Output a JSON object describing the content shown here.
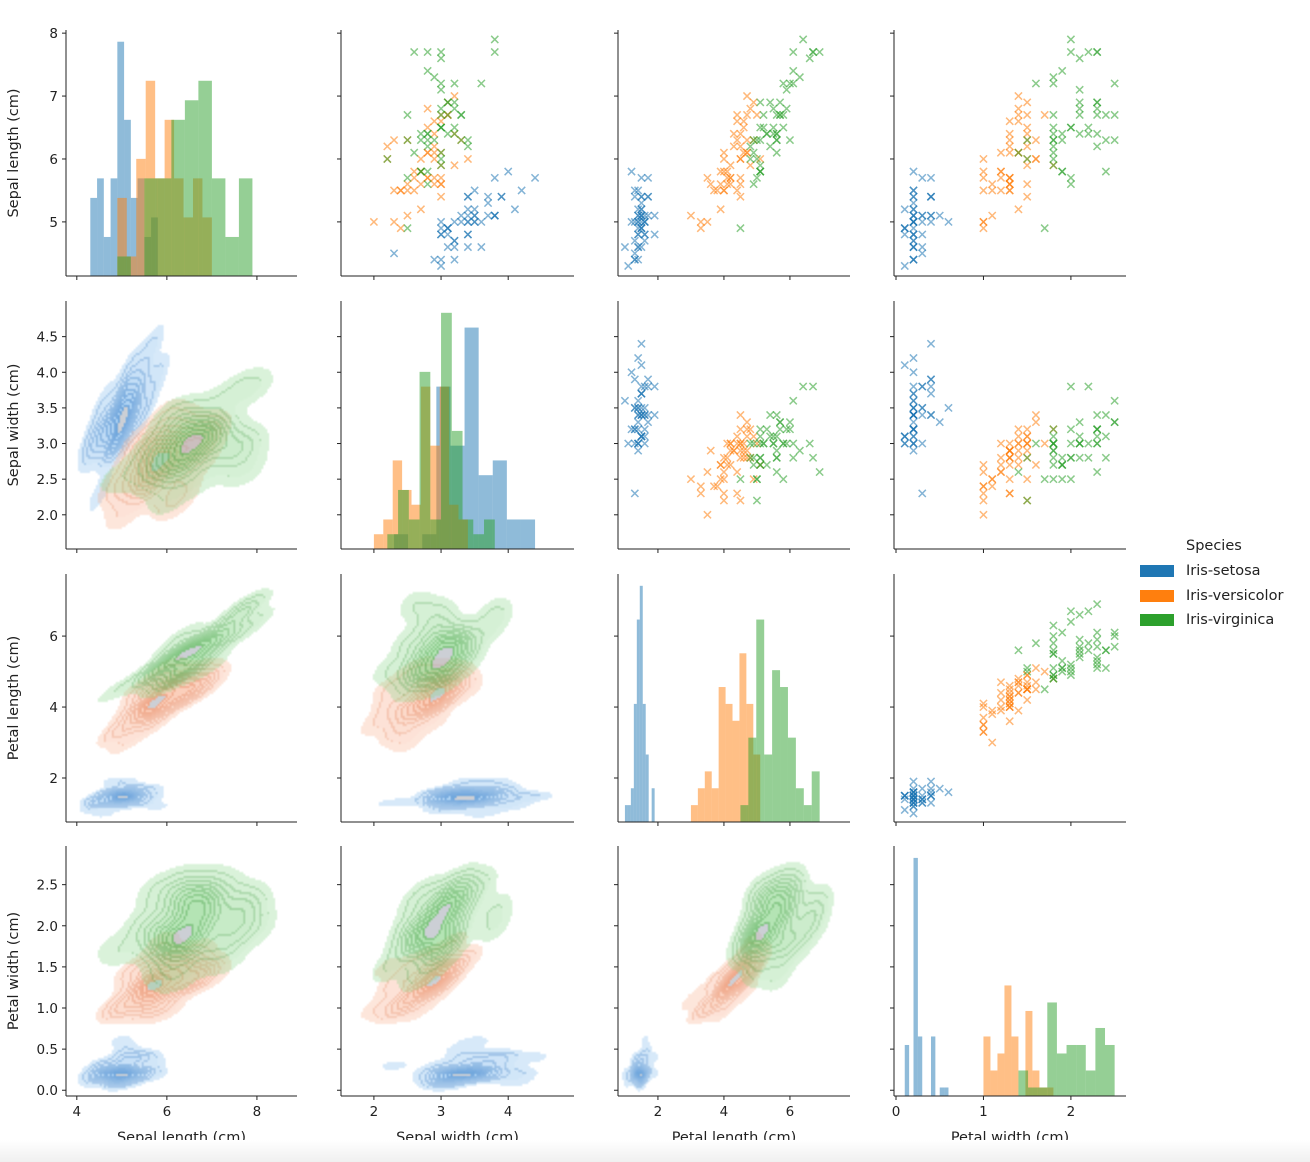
{
  "chart_data": {
    "type": "pairplot",
    "diagonal": "histogram",
    "upper": "scatter",
    "lower": "kde",
    "marker": "x",
    "grid": false,
    "legend": {
      "title": "Species",
      "placement": "right"
    },
    "variables": [
      {
        "label": "Sepal length (cm)",
        "xlim": [
          3.76,
          8.89
        ],
        "ylim": [
          4.14,
          8.05
        ],
        "xticks": [
          "4",
          "6",
          "8"
        ],
        "yticks": [
          "5",
          "6",
          "7",
          "8"
        ]
      },
      {
        "label": "Sepal width (cm)",
        "xlim": [
          1.51,
          4.98
        ],
        "ylim": [
          1.52,
          5.0
        ],
        "xticks": [
          "2",
          "3",
          "4"
        ],
        "yticks": [
          "2.0",
          "2.5",
          "3.0",
          "3.5",
          "4.0",
          "4.5"
        ]
      },
      {
        "label": "Petal length (cm)",
        "xlim": [
          0.79,
          7.82
        ],
        "ylim": [
          0.76,
          7.75
        ],
        "xticks": [
          "2",
          "4",
          "6"
        ],
        "yticks": [
          "2",
          "4",
          "6"
        ]
      },
      {
        "label": "Petal width (cm)",
        "xlim": [
          -0.023,
          2.63
        ],
        "ylim": [
          -0.07,
          2.97
        ],
        "xticks": [
          "0",
          "1",
          "2"
        ],
        "yticks": [
          "0.0",
          "0.5",
          "1.0",
          "1.5",
          "2.0",
          "2.5"
        ]
      }
    ],
    "series": [
      {
        "name": "Iris-setosa",
        "color": "#1f77b4",
        "points": [
          [
            5.1,
            3.5,
            1.4,
            0.2
          ],
          [
            4.9,
            3.0,
            1.4,
            0.2
          ],
          [
            4.7,
            3.2,
            1.3,
            0.2
          ],
          [
            4.6,
            3.1,
            1.5,
            0.2
          ],
          [
            5.0,
            3.6,
            1.4,
            0.2
          ],
          [
            5.4,
            3.9,
            1.7,
            0.4
          ],
          [
            4.6,
            3.4,
            1.4,
            0.3
          ],
          [
            5.0,
            3.4,
            1.5,
            0.2
          ],
          [
            4.4,
            2.9,
            1.4,
            0.2
          ],
          [
            4.9,
            3.1,
            1.5,
            0.1
          ],
          [
            5.4,
            3.7,
            1.5,
            0.2
          ],
          [
            4.8,
            3.4,
            1.6,
            0.2
          ],
          [
            4.8,
            3.0,
            1.4,
            0.1
          ],
          [
            4.3,
            3.0,
            1.1,
            0.1
          ],
          [
            5.8,
            4.0,
            1.2,
            0.2
          ],
          [
            5.7,
            4.4,
            1.5,
            0.4
          ],
          [
            5.4,
            3.9,
            1.3,
            0.4
          ],
          [
            5.1,
            3.5,
            1.4,
            0.3
          ],
          [
            5.7,
            3.8,
            1.7,
            0.3
          ],
          [
            5.1,
            3.8,
            1.5,
            0.3
          ],
          [
            5.4,
            3.4,
            1.7,
            0.2
          ],
          [
            5.1,
            3.7,
            1.5,
            0.4
          ],
          [
            4.6,
            3.6,
            1.0,
            0.2
          ],
          [
            5.1,
            3.3,
            1.7,
            0.5
          ],
          [
            4.8,
            3.4,
            1.9,
            0.2
          ],
          [
            5.0,
            3.0,
            1.6,
            0.2
          ],
          [
            5.0,
            3.4,
            1.6,
            0.4
          ],
          [
            5.2,
            3.5,
            1.5,
            0.2
          ],
          [
            5.2,
            3.4,
            1.4,
            0.2
          ],
          [
            4.7,
            3.2,
            1.6,
            0.2
          ],
          [
            4.8,
            3.1,
            1.6,
            0.2
          ],
          [
            5.4,
            3.4,
            1.5,
            0.4
          ],
          [
            5.2,
            4.1,
            1.5,
            0.1
          ],
          [
            5.5,
            4.2,
            1.4,
            0.2
          ],
          [
            4.9,
            3.1,
            1.5,
            0.1
          ],
          [
            5.0,
            3.2,
            1.2,
            0.2
          ],
          [
            5.5,
            3.5,
            1.3,
            0.2
          ],
          [
            4.9,
            3.1,
            1.5,
            0.1
          ],
          [
            4.4,
            3.0,
            1.3,
            0.2
          ],
          [
            5.1,
            3.4,
            1.5,
            0.2
          ],
          [
            5.0,
            3.5,
            1.3,
            0.3
          ],
          [
            4.5,
            2.3,
            1.3,
            0.3
          ],
          [
            4.4,
            3.2,
            1.3,
            0.2
          ],
          [
            5.0,
            3.5,
            1.6,
            0.6
          ],
          [
            5.1,
            3.8,
            1.9,
            0.4
          ],
          [
            4.8,
            3.0,
            1.4,
            0.3
          ],
          [
            5.1,
            3.8,
            1.6,
            0.2
          ],
          [
            4.6,
            3.2,
            1.4,
            0.2
          ],
          [
            5.3,
            3.7,
            1.5,
            0.2
          ],
          [
            5.0,
            3.3,
            1.4,
            0.2
          ]
        ]
      },
      {
        "name": "Iris-versicolor",
        "color": "#ff7f0e",
        "points": [
          [
            7.0,
            3.2,
            4.7,
            1.4
          ],
          [
            6.4,
            3.2,
            4.5,
            1.5
          ],
          [
            6.9,
            3.1,
            4.9,
            1.5
          ],
          [
            5.5,
            2.3,
            4.0,
            1.3
          ],
          [
            6.5,
            2.8,
            4.6,
            1.5
          ],
          [
            5.7,
            2.8,
            4.5,
            1.3
          ],
          [
            6.3,
            3.3,
            4.7,
            1.6
          ],
          [
            4.9,
            2.4,
            3.3,
            1.0
          ],
          [
            6.6,
            2.9,
            4.6,
            1.3
          ],
          [
            5.2,
            2.7,
            3.9,
            1.4
          ],
          [
            5.0,
            2.0,
            3.5,
            1.0
          ],
          [
            5.9,
            3.0,
            4.2,
            1.5
          ],
          [
            6.0,
            2.2,
            4.0,
            1.0
          ],
          [
            6.1,
            2.9,
            4.7,
            1.4
          ],
          [
            5.6,
            2.9,
            3.6,
            1.3
          ],
          [
            6.7,
            3.1,
            4.4,
            1.4
          ],
          [
            5.6,
            3.0,
            4.5,
            1.5
          ],
          [
            5.8,
            2.7,
            4.1,
            1.0
          ],
          [
            6.2,
            2.2,
            4.5,
            1.5
          ],
          [
            5.6,
            2.5,
            3.9,
            1.1
          ],
          [
            5.9,
            3.2,
            4.8,
            1.8
          ],
          [
            6.1,
            2.8,
            4.0,
            1.3
          ],
          [
            6.3,
            2.5,
            4.9,
            1.5
          ],
          [
            6.1,
            2.8,
            4.7,
            1.2
          ],
          [
            6.4,
            2.9,
            4.3,
            1.3
          ],
          [
            6.6,
            3.0,
            4.4,
            1.4
          ],
          [
            6.8,
            2.8,
            4.8,
            1.4
          ],
          [
            6.7,
            3.0,
            5.0,
            1.7
          ],
          [
            6.0,
            2.9,
            4.5,
            1.5
          ],
          [
            5.7,
            2.6,
            3.5,
            1.0
          ],
          [
            5.5,
            2.4,
            3.8,
            1.1
          ],
          [
            5.5,
            2.4,
            3.7,
            1.0
          ],
          [
            5.8,
            2.7,
            3.9,
            1.2
          ],
          [
            6.0,
            2.7,
            5.1,
            1.6
          ],
          [
            5.4,
            3.0,
            4.5,
            1.5
          ],
          [
            6.0,
            3.4,
            4.5,
            1.6
          ],
          [
            6.7,
            3.1,
            4.7,
            1.5
          ],
          [
            6.3,
            2.3,
            4.4,
            1.3
          ],
          [
            5.6,
            3.0,
            4.1,
            1.3
          ],
          [
            5.5,
            2.5,
            4.0,
            1.3
          ],
          [
            5.5,
            2.6,
            4.4,
            1.2
          ],
          [
            6.1,
            3.0,
            4.6,
            1.4
          ],
          [
            5.8,
            2.6,
            4.0,
            1.2
          ],
          [
            5.0,
            2.3,
            3.3,
            1.0
          ],
          [
            5.6,
            2.7,
            4.2,
            1.3
          ],
          [
            5.7,
            3.0,
            4.2,
            1.2
          ],
          [
            5.7,
            2.9,
            4.2,
            1.3
          ],
          [
            6.2,
            2.9,
            4.3,
            1.3
          ],
          [
            5.1,
            2.5,
            3.0,
            1.1
          ],
          [
            5.7,
            2.8,
            4.1,
            1.3
          ]
        ]
      },
      {
        "name": "Iris-virginica",
        "color": "#2ca02c",
        "points": [
          [
            6.3,
            3.3,
            6.0,
            2.5
          ],
          [
            5.8,
            2.7,
            5.1,
            1.9
          ],
          [
            7.1,
            3.0,
            5.9,
            2.1
          ],
          [
            6.3,
            2.9,
            5.6,
            1.8
          ],
          [
            6.5,
            3.0,
            5.8,
            2.2
          ],
          [
            7.6,
            3.0,
            6.6,
            2.1
          ],
          [
            4.9,
            2.5,
            4.5,
            1.7
          ],
          [
            7.3,
            2.9,
            6.3,
            1.8
          ],
          [
            6.7,
            2.5,
            5.8,
            1.8
          ],
          [
            7.2,
            3.6,
            6.1,
            2.5
          ],
          [
            6.5,
            3.2,
            5.1,
            2.0
          ],
          [
            6.4,
            2.7,
            5.3,
            1.9
          ],
          [
            6.8,
            3.0,
            5.5,
            2.1
          ],
          [
            5.7,
            2.5,
            5.0,
            2.0
          ],
          [
            5.8,
            2.8,
            5.1,
            2.4
          ],
          [
            6.4,
            3.2,
            5.3,
            2.3
          ],
          [
            6.5,
            3.0,
            5.5,
            1.8
          ],
          [
            7.7,
            3.8,
            6.7,
            2.2
          ],
          [
            7.7,
            2.6,
            6.9,
            2.3
          ],
          [
            6.0,
            2.2,
            5.0,
            1.5
          ],
          [
            6.9,
            3.2,
            5.7,
            2.3
          ],
          [
            5.6,
            2.8,
            4.9,
            2.0
          ],
          [
            7.7,
            2.8,
            6.7,
            2.0
          ],
          [
            6.3,
            2.7,
            4.9,
            1.8
          ],
          [
            6.7,
            3.3,
            5.7,
            2.1
          ],
          [
            7.2,
            3.2,
            6.0,
            1.8
          ],
          [
            6.2,
            2.8,
            4.8,
            1.8
          ],
          [
            6.1,
            3.0,
            4.9,
            1.8
          ],
          [
            6.4,
            2.8,
            5.6,
            2.1
          ],
          [
            7.2,
            3.0,
            5.8,
            1.6
          ],
          [
            7.4,
            2.8,
            6.1,
            1.9
          ],
          [
            7.9,
            3.8,
            6.4,
            2.0
          ],
          [
            6.4,
            2.8,
            5.6,
            2.2
          ],
          [
            6.3,
            2.8,
            5.1,
            1.5
          ],
          [
            6.1,
            2.6,
            5.6,
            1.4
          ],
          [
            7.7,
            3.0,
            6.1,
            2.3
          ],
          [
            6.3,
            3.4,
            5.6,
            2.4
          ],
          [
            6.4,
            3.1,
            5.5,
            1.8
          ],
          [
            6.0,
            3.0,
            4.8,
            1.8
          ],
          [
            6.9,
            3.1,
            5.4,
            2.1
          ],
          [
            6.7,
            3.1,
            5.6,
            2.4
          ],
          [
            6.9,
            3.1,
            5.1,
            2.3
          ],
          [
            5.8,
            2.7,
            5.1,
            1.9
          ],
          [
            6.8,
            3.2,
            5.9,
            2.3
          ],
          [
            6.7,
            3.3,
            5.7,
            2.5
          ],
          [
            6.7,
            3.0,
            5.2,
            2.3
          ],
          [
            6.3,
            2.5,
            5.0,
            1.9
          ],
          [
            6.5,
            3.0,
            5.2,
            2.0
          ],
          [
            6.2,
            3.4,
            5.4,
            2.3
          ],
          [
            5.9,
            3.0,
            5.1,
            1.8
          ]
        ]
      }
    ]
  }
}
